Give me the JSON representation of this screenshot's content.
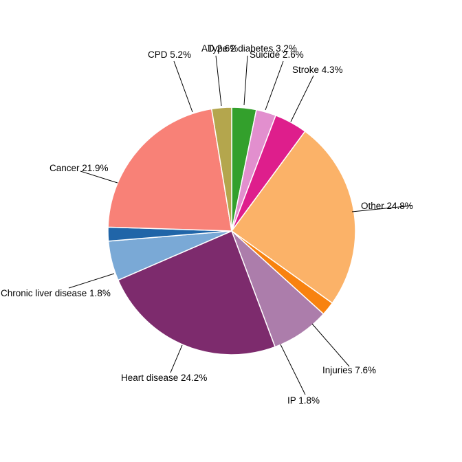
{
  "chart_data": {
    "type": "pie",
    "title": "",
    "description": "Pie chart of causes of death by percent share, labels outside with leader lines",
    "unit": "%",
    "total_pct": 100.0,
    "start_angle_deg": 0,
    "direction": "clockwise",
    "legend": "none",
    "label_style": "external-with-leader-lines",
    "background_color": "#FFFFFF",
    "slice_border_color": "#FFFFFF",
    "label_text_color": "#000000",
    "slices": [
      {
        "id": "type-2-diabetes",
        "name": "Type 2 diabetes",
        "pct": 3.2,
        "label_text": "Type 2 diabetes 3.2%",
        "color": "#33A02C"
      },
      {
        "id": "suicide",
        "name": "Suicide",
        "pct": 2.6,
        "label_text": "Suicide 2.6%",
        "color": "#E28FCE"
      },
      {
        "id": "stroke",
        "name": "Stroke",
        "pct": 4.3,
        "label_text": "Stroke 4.3%",
        "color": "#DE1E8C"
      },
      {
        "id": "other",
        "name": "Other",
        "pct": 24.8,
        "label_text": "Other 24.8%",
        "color": "#FBB268"
      },
      {
        "id": "ip",
        "name": "IP",
        "pct": 1.8,
        "label_text": "IP 1.8%",
        "color": "#F8820F"
      },
      {
        "id": "injuries",
        "name": "Injuries",
        "pct": 7.6,
        "label_text": "Injuries 7.6%",
        "color": "#AC7DAB"
      },
      {
        "id": "heart-disease",
        "name": "Heart disease",
        "pct": 24.2,
        "label_text": "Heart disease 24.2%",
        "color": "#7D2B6D"
      },
      {
        "id": "cpd",
        "name": "CPD",
        "pct": 5.2,
        "label_text": "CPD 5.2%",
        "color": "#7AA9D6"
      },
      {
        "id": "chronic-liver-disease",
        "name": "Chronic liver disease",
        "pct": 1.8,
        "label_text": "Chronic liver disease 1.8%",
        "color": "#2065A8"
      },
      {
        "id": "cancer",
        "name": "Cancer",
        "pct": 21.9,
        "label_text": "Cancer 21.9%",
        "color": "#F88177"
      },
      {
        "id": "ad",
        "name": "AD",
        "pct": 2.6,
        "label_text": "AD 2.6%",
        "color": "#B4A64D"
      }
    ]
  }
}
